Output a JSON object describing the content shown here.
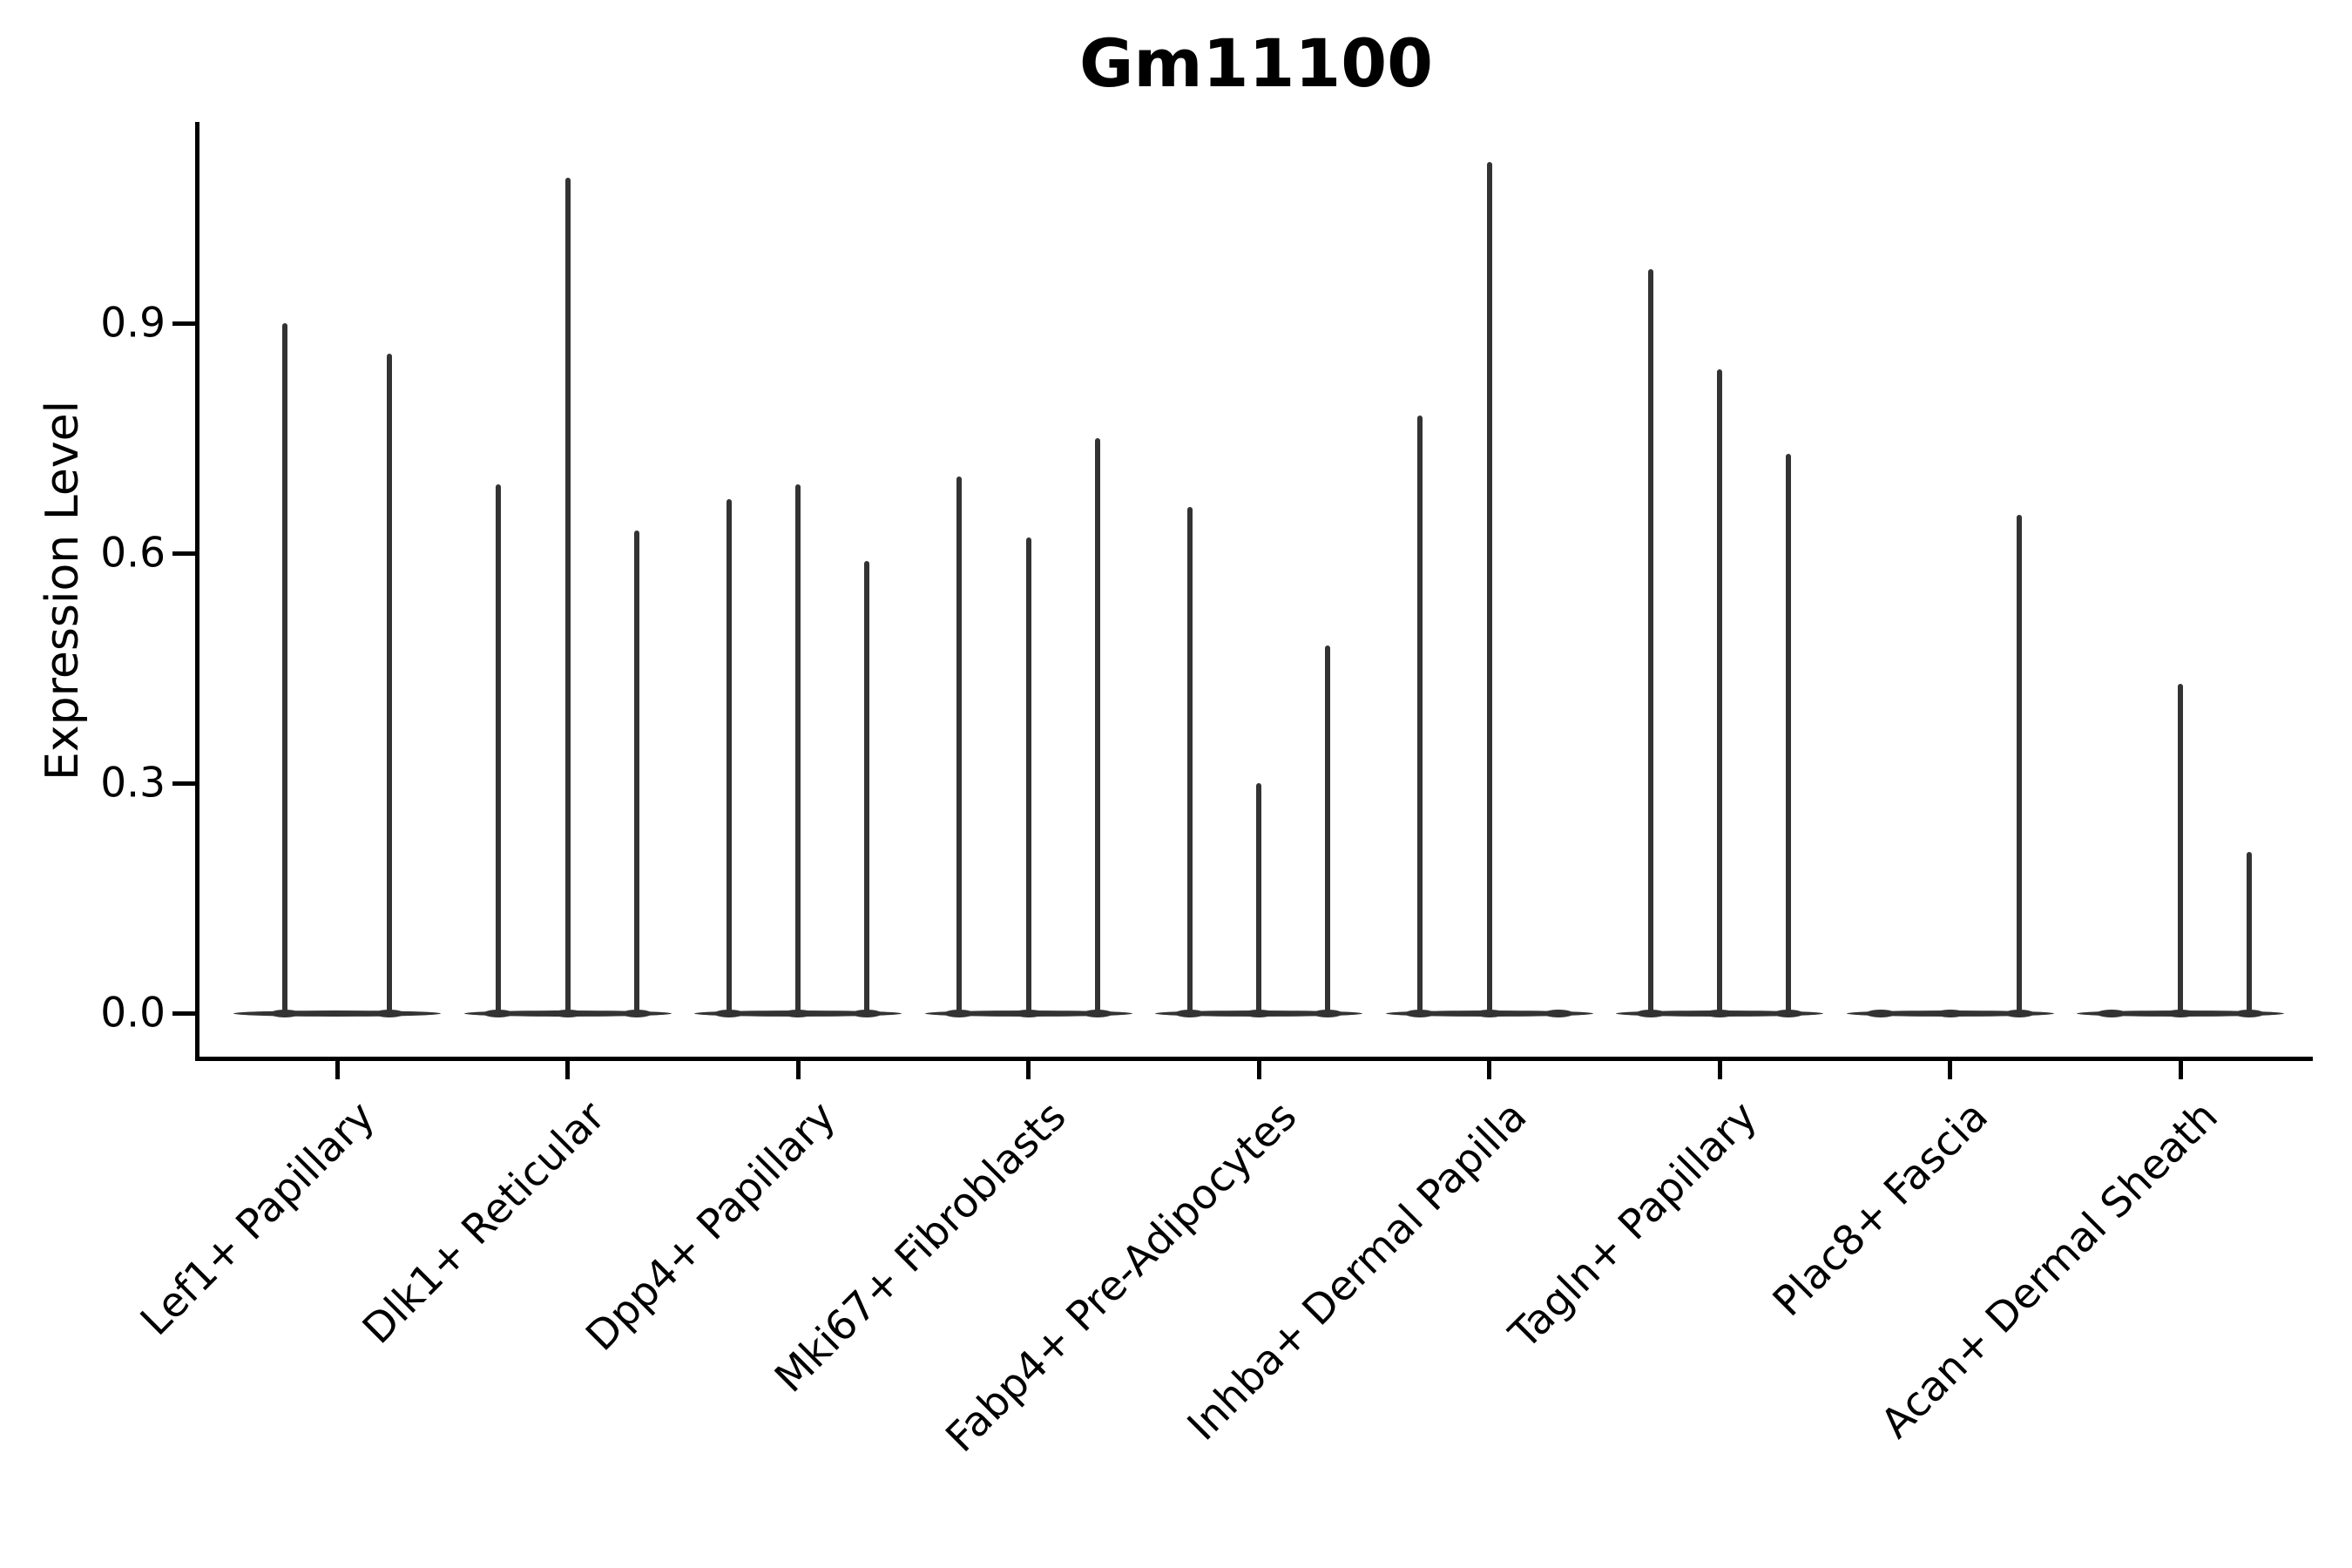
{
  "title": "Gm11100",
  "y_axis": {
    "label": "Expression Level",
    "tick_labels": [
      "0.0",
      "0.3",
      "0.6",
      "0.9"
    ],
    "tick_values": [
      0.0,
      0.3,
      0.6,
      0.9
    ]
  },
  "colors": {
    "violin": "#333333",
    "axis": "#000000",
    "text": "#000000",
    "background": "#ffffff"
  },
  "chart_data": {
    "type": "violin",
    "title": "Gm11100",
    "xlabel": "",
    "ylabel": "Expression Level",
    "ytick_labels": [
      "0.0",
      "0.3",
      "0.6",
      "0.9"
    ],
    "ytick_values": [
      0.0,
      0.3,
      0.6,
      0.9
    ],
    "ylim": [
      -0.055,
      1.163
    ],
    "grid": false,
    "legend": "none",
    "categories": [
      "Lef1+ Papillary",
      "Dlk1+ Reticular",
      "Dpp4+ Papillary",
      "Mki67+ Fibroblasts",
      "Fabp4+ Pre-Adipocytes",
      "Inhba+ Dermal Papilla",
      "Tagln+ Papillary",
      "Plac8+ Fascia",
      "Acan+ Dermal Sheath"
    ],
    "groups": [
      {
        "label": "Lef1+ Papillary",
        "violins": [
          {
            "offset": -0.225,
            "max": 0.9
          },
          {
            "offset": 0.225,
            "max": 0.86
          }
        ]
      },
      {
        "label": "Dlk1+ Reticular",
        "violins": [
          {
            "offset": -0.3,
            "max": 0.69
          },
          {
            "offset": 0.0,
            "max": 1.09
          },
          {
            "offset": 0.3,
            "max": 0.63
          }
        ]
      },
      {
        "label": "Dpp4+ Papillary",
        "violins": [
          {
            "offset": -0.3,
            "max": 0.67
          },
          {
            "offset": 0.0,
            "max": 0.69
          },
          {
            "offset": 0.3,
            "max": 0.59
          }
        ]
      },
      {
        "label": "Mki67+ Fibroblasts",
        "violins": [
          {
            "offset": -0.3,
            "max": 0.7
          },
          {
            "offset": 0.0,
            "max": 0.62
          },
          {
            "offset": 0.3,
            "max": 0.75
          }
        ]
      },
      {
        "label": "Fabp4+ Pre-Adipocytes",
        "violins": [
          {
            "offset": -0.3,
            "max": 0.66
          },
          {
            "offset": 0.0,
            "max": 0.3
          },
          {
            "offset": 0.3,
            "max": 0.48
          }
        ]
      },
      {
        "label": "Inhba+ Dermal Papilla",
        "violins": [
          {
            "offset": -0.3,
            "max": 0.78
          },
          {
            "offset": 0.0,
            "max": 1.11
          },
          {
            "offset": 0.3,
            "max": 0.0
          }
        ]
      },
      {
        "label": "Tagln+ Papillary",
        "violins": [
          {
            "offset": -0.3,
            "max": 0.97
          },
          {
            "offset": 0.0,
            "max": 0.84
          },
          {
            "offset": 0.3,
            "max": 0.73
          }
        ]
      },
      {
        "label": "Plac8+ Fascia",
        "violins": [
          {
            "offset": -0.3,
            "max": 0.0
          },
          {
            "offset": 0.0,
            "max": 0.0
          },
          {
            "offset": 0.3,
            "max": 0.65
          }
        ]
      },
      {
        "label": "Acan+ Dermal Sheath",
        "violins": [
          {
            "offset": -0.3,
            "max": 0.0
          },
          {
            "offset": 0.0,
            "max": 0.43
          },
          {
            "offset": 0.3,
            "max": 0.21
          }
        ]
      }
    ]
  }
}
